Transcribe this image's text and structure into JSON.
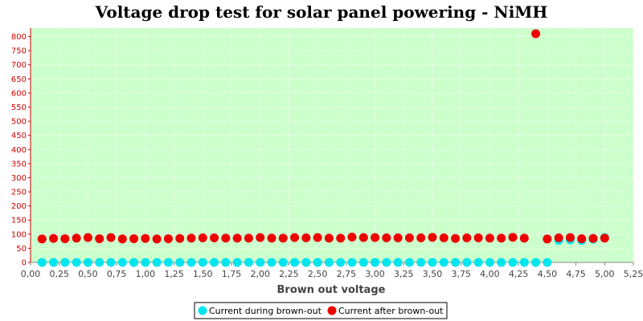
{
  "chart_data": {
    "type": "scatter",
    "title": "Voltage drop test for solar panel powering -  NiMH",
    "xlabel": "Brown out voltage",
    "ylabel": "",
    "xlim": [
      0,
      5.25
    ],
    "ylim": [
      0,
      830
    ],
    "xticks": [
      "0,00",
      "0,25",
      "0,50",
      "0,75",
      "1,00",
      "1,25",
      "1,50",
      "1,75",
      "2,00",
      "2,25",
      "2,50",
      "2,75",
      "3,00",
      "3,25",
      "3,50",
      "3,75",
      "4,00",
      "4,25",
      "4,50",
      "4,75",
      "5,00",
      "5,25"
    ],
    "yticks": [
      "0",
      "50",
      "100",
      "150",
      "200",
      "250",
      "300",
      "350",
      "400",
      "450",
      "500",
      "550",
      "600",
      "650",
      "700",
      "750",
      "800"
    ],
    "grid": true,
    "background": "#ccffcc",
    "legend_position": "bottom",
    "series": [
      {
        "name": "Current during brown-out",
        "color": "#00e5ee",
        "x": [
          0.1,
          0.2,
          0.3,
          0.4,
          0.5,
          0.6,
          0.7,
          0.8,
          0.9,
          1.0,
          1.1,
          1.2,
          1.3,
          1.4,
          1.5,
          1.6,
          1.7,
          1.8,
          1.9,
          2.0,
          2.1,
          2.2,
          2.3,
          2.4,
          2.5,
          2.6,
          2.7,
          2.8,
          2.9,
          3.0,
          3.1,
          3.2,
          3.3,
          3.4,
          3.5,
          3.6,
          3.7,
          3.8,
          3.9,
          4.0,
          4.1,
          4.2,
          4.3,
          4.4,
          4.5,
          4.6,
          4.7,
          4.8,
          4.9,
          5.0
        ],
        "y": [
          0,
          0,
          0,
          0,
          0,
          0,
          0,
          0,
          0,
          0,
          0,
          0,
          0,
          0,
          0,
          0,
          0,
          0,
          0,
          0,
          0,
          0,
          0,
          0,
          0,
          0,
          0,
          0,
          0,
          0,
          0,
          0,
          0,
          0,
          0,
          0,
          0,
          0,
          0,
          0,
          0,
          0,
          0,
          0,
          0,
          78,
          80,
          78,
          82,
          88
        ]
      },
      {
        "name": "Current after brown-out",
        "color": "#ee0000",
        "x": [
          0.1,
          0.2,
          0.3,
          0.4,
          0.5,
          0.6,
          0.7,
          0.8,
          0.9,
          1.0,
          1.1,
          1.2,
          1.3,
          1.4,
          1.5,
          1.6,
          1.7,
          1.8,
          1.9,
          2.0,
          2.1,
          2.2,
          2.3,
          2.4,
          2.5,
          2.6,
          2.7,
          2.8,
          2.9,
          3.0,
          3.1,
          3.2,
          3.3,
          3.4,
          3.5,
          3.6,
          3.7,
          3.8,
          3.9,
          4.0,
          4.1,
          4.2,
          4.3,
          4.4,
          4.5,
          4.6,
          4.7,
          4.8,
          4.9,
          5.0
        ],
        "y": [
          83,
          85,
          84,
          86,
          88,
          84,
          88,
          83,
          84,
          85,
          83,
          84,
          85,
          86,
          87,
          87,
          86,
          86,
          86,
          88,
          86,
          86,
          88,
          87,
          88,
          86,
          86,
          90,
          88,
          88,
          87,
          87,
          87,
          87,
          89,
          87,
          85,
          87,
          87,
          86,
          86,
          89,
          86,
          810,
          83,
          87,
          88,
          84,
          85,
          86
        ]
      }
    ]
  }
}
